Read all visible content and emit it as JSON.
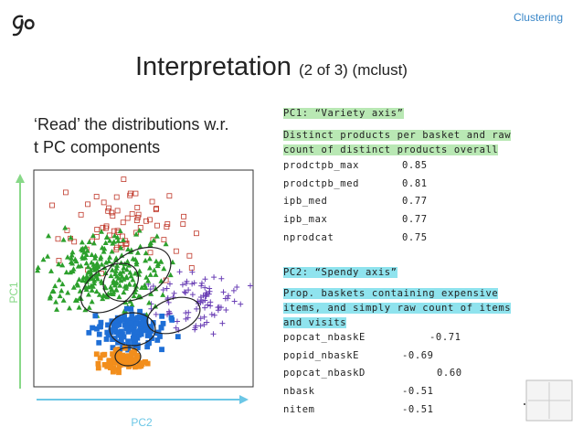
{
  "header": {
    "section": "Clustering",
    "title": "Interpretation",
    "subtitle": "(2 of 3) (mclust)"
  },
  "intro": [
    "‘Read’ the distributions w.r.",
    "t PC components"
  ],
  "plot": {
    "y_label": "PC1",
    "x_label": "PC2"
  },
  "pc1": {
    "heading": "PC1: “Variety axis”",
    "description": [
      "Distinct products per basket and raw",
      "count of distinct products overall"
    ],
    "rows": [
      {
        "name": "prodctpb_max",
        "value": "0.85"
      },
      {
        "name": "prodctpb_med",
        "value": "0.81"
      },
      {
        "name": "ipb_med",
        "value": "0.77"
      },
      {
        "name": "ipb_max",
        "value": "0.77"
      },
      {
        "name": "nprodcat",
        "value": "0.75"
      }
    ]
  },
  "pc2": {
    "heading": "PC2: “Spendy axis”",
    "description": [
      "Prop. baskets containing expensive",
      "items, and simply raw count of items",
      "and visits"
    ],
    "rows": [
      {
        "name": "popcat_nbaskE",
        "value": "-0.71"
      },
      {
        "name": "popid_nbaskE",
        "value": "-0.69"
      },
      {
        "name": "popcat_nbaskD",
        "value": "0.60"
      },
      {
        "name": "nbask",
        "value": "-0.51"
      },
      {
        "name": "nitem",
        "value": "-0.51"
      }
    ]
  }
}
